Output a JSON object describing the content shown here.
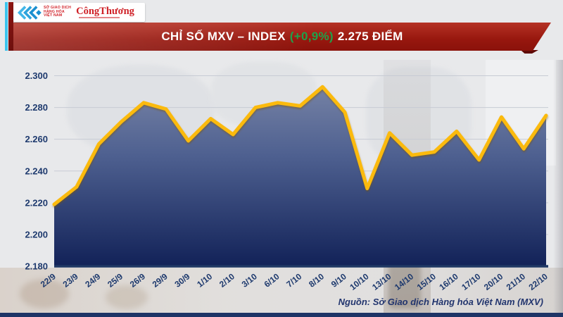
{
  "logo": {
    "exchange_name_lines": [
      "SỞ GIAO DỊCH",
      "HÀNG HÓA",
      "VIỆT NAM"
    ],
    "newspaper_name": "CôngThương"
  },
  "banner": {
    "title_main": "CHỈ SỐ MXV – INDEX",
    "title_change": "(+0,9%)",
    "title_value": "2.275 ĐIỂM"
  },
  "footer": {
    "source_text": "Nguồn: Sở Giao dịch Hàng hóa Việt Nam (MXV)"
  },
  "colors": {
    "banner_red": "#97170E",
    "change_green": "#1FA24A",
    "axis_navy": "#1E3A6E",
    "line_gold": "#FBBA0A",
    "stripe_cyan": "#3BC4EE",
    "area_top": "#7B87A8",
    "area_mid": "#4E6090",
    "area_bottom": "#122258"
  },
  "chart_data": {
    "type": "area",
    "title": "CHỈ SỐ MXV – INDEX (+0,9%) 2.275 ĐIỂM",
    "xlabel": "",
    "ylabel": "",
    "grid": true,
    "categories": [
      "22/9",
      "23/9",
      "24/9",
      "25/9",
      "26/9",
      "29/9",
      "30/9",
      "1/10",
      "2/10",
      "3/10",
      "6/10",
      "7/10",
      "8/10",
      "9/10",
      "10/10",
      "13/10",
      "14/10",
      "15/10",
      "16/10",
      "17/10",
      "20/10",
      "21/10",
      "22/10"
    ],
    "values": [
      2219,
      2230,
      2257,
      2271,
      2283,
      2279,
      2259,
      2273,
      2263,
      2280,
      2283,
      2281,
      2293,
      2277,
      2229,
      2264,
      2250,
      2252,
      2265,
      2247,
      2274,
      2254,
      2275
    ],
    "ylim": [
      2180,
      2300
    ],
    "ytick_step": 20,
    "ytick_labels": [
      "2.300",
      "2.280",
      "2.260",
      "2.240",
      "2.220",
      "2.200",
      "2.180"
    ]
  }
}
